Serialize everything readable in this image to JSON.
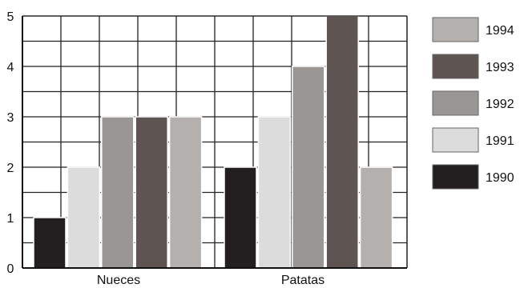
{
  "chart_data": {
    "type": "bar",
    "categories": [
      "Nueces",
      "Patatas"
    ],
    "series": [
      {
        "name": "1990",
        "values": [
          1,
          2
        ],
        "color": "#231f20"
      },
      {
        "name": "1991",
        "values": [
          2,
          3
        ],
        "color": "#dcdcdc"
      },
      {
        "name": "1992",
        "values": [
          3,
          4
        ],
        "color": "#9a9694"
      },
      {
        "name": "1993",
        "values": [
          3,
          5
        ],
        "color": "#5e5451"
      },
      {
        "name": "1994",
        "values": [
          3,
          2
        ],
        "color": "#b4b0ae"
      }
    ],
    "legend_order": [
      "1994",
      "1993",
      "1992",
      "1991",
      "1990"
    ],
    "yticks": [
      "0",
      "1",
      "2",
      "3",
      "4",
      "5"
    ],
    "ylim": [
      0,
      5
    ],
    "grid": true,
    "legend_position": "right"
  }
}
